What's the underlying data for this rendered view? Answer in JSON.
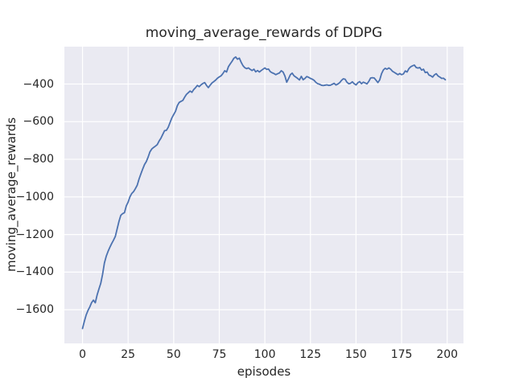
{
  "chart_data": {
    "type": "line",
    "title": "moving_average_rewards of DDPG",
    "xlabel": "episodes",
    "ylabel": "moving_average_rewards",
    "x_ticks": [
      0,
      25,
      50,
      75,
      100,
      125,
      150,
      175,
      200
    ],
    "x_tick_labels": [
      "0",
      "25",
      "50",
      "75",
      "100",
      "125",
      "150",
      "175",
      "200"
    ],
    "y_ticks": [
      -400,
      -600,
      -800,
      -1000,
      -1200,
      -1400,
      -1600
    ],
    "y_tick_labels": [
      "−400",
      "−600",
      "−800",
      "−1000",
      "−1200",
      "−1400",
      "−1600"
    ],
    "xlim": [
      -9.95,
      208.95
    ],
    "ylim": [
      -1779,
      -201
    ],
    "grid": true,
    "legend": false,
    "colors": {
      "axes_background": "#EAEAF2",
      "grid": "#FFFFFF",
      "line": "#4C72B0",
      "text": "#262626"
    },
    "series": [
      {
        "name": "moving_average_rewards",
        "color": "#4C72B0",
        "x_start": 0,
        "x_step": 1,
        "values": [
          -1700,
          -1662,
          -1628,
          -1604,
          -1585,
          -1562,
          -1549,
          -1563,
          -1522,
          -1490,
          -1460,
          -1412,
          -1352,
          -1316,
          -1290,
          -1268,
          -1248,
          -1230,
          -1210,
          -1170,
          -1130,
          -1098,
          -1089,
          -1084,
          -1048,
          -1028,
          -1000,
          -982,
          -972,
          -956,
          -938,
          -905,
          -878,
          -852,
          -828,
          -812,
          -788,
          -760,
          -745,
          -737,
          -730,
          -722,
          -703,
          -688,
          -668,
          -648,
          -646,
          -630,
          -605,
          -580,
          -562,
          -545,
          -515,
          -498,
          -492,
          -487,
          -470,
          -455,
          -446,
          -437,
          -444,
          -429,
          -419,
          -407,
          -414,
          -404,
          -397,
          -392,
          -407,
          -419,
          -406,
          -394,
          -387,
          -379,
          -369,
          -362,
          -356,
          -344,
          -329,
          -336,
          -308,
          -293,
          -279,
          -263,
          -256,
          -268,
          -262,
          -284,
          -302,
          -313,
          -318,
          -314,
          -322,
          -328,
          -321,
          -335,
          -328,
          -336,
          -328,
          -321,
          -314,
          -322,
          -320,
          -334,
          -340,
          -344,
          -350,
          -345,
          -341,
          -329,
          -336,
          -357,
          -390,
          -371,
          -350,
          -342,
          -356,
          -363,
          -370,
          -378,
          -359,
          -377,
          -370,
          -360,
          -364,
          -370,
          -374,
          -380,
          -391,
          -398,
          -401,
          -406,
          -408,
          -406,
          -404,
          -407,
          -406,
          -401,
          -396,
          -405,
          -400,
          -393,
          -381,
          -372,
          -374,
          -390,
          -398,
          -396,
          -388,
          -398,
          -405,
          -393,
          -387,
          -398,
          -390,
          -394,
          -399,
          -386,
          -368,
          -366,
          -368,
          -380,
          -392,
          -378,
          -345,
          -325,
          -316,
          -321,
          -314,
          -321,
          -332,
          -338,
          -344,
          -350,
          -344,
          -350,
          -346,
          -330,
          -336,
          -318,
          -308,
          -303,
          -299,
          -312,
          -315,
          -312,
          -326,
          -321,
          -339,
          -336,
          -352,
          -356,
          -363,
          -351,
          -345,
          -357,
          -363,
          -370,
          -369,
          -377
        ]
      }
    ]
  }
}
